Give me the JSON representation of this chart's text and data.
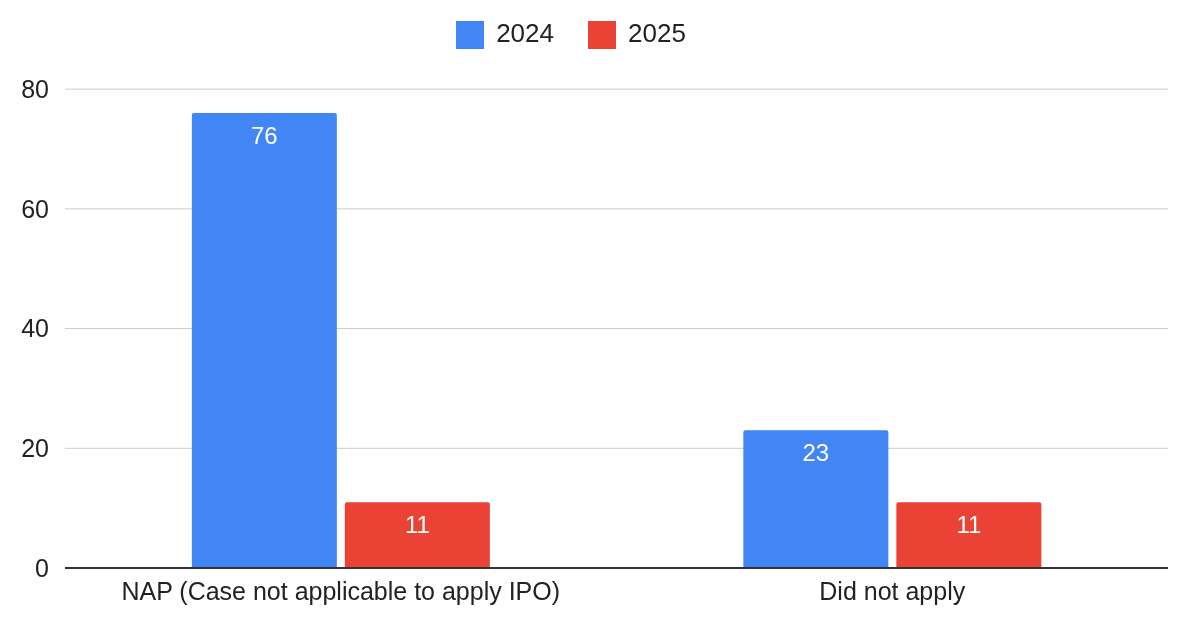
{
  "chart_data": {
    "type": "bar",
    "categories": [
      "NAP (Case not applicable to apply IPO)",
      "Did not apply"
    ],
    "series": [
      {
        "name": "2024",
        "color": "#4285f4",
        "values": [
          76,
          23
        ]
      },
      {
        "name": "2025",
        "color": "#ea4335",
        "values": [
          11,
          11
        ]
      }
    ],
    "ylim": [
      0,
      80
    ],
    "yticks": [
      0,
      20,
      40,
      60,
      80
    ],
    "grid": "y",
    "legend": "top",
    "data_labels": true
  }
}
